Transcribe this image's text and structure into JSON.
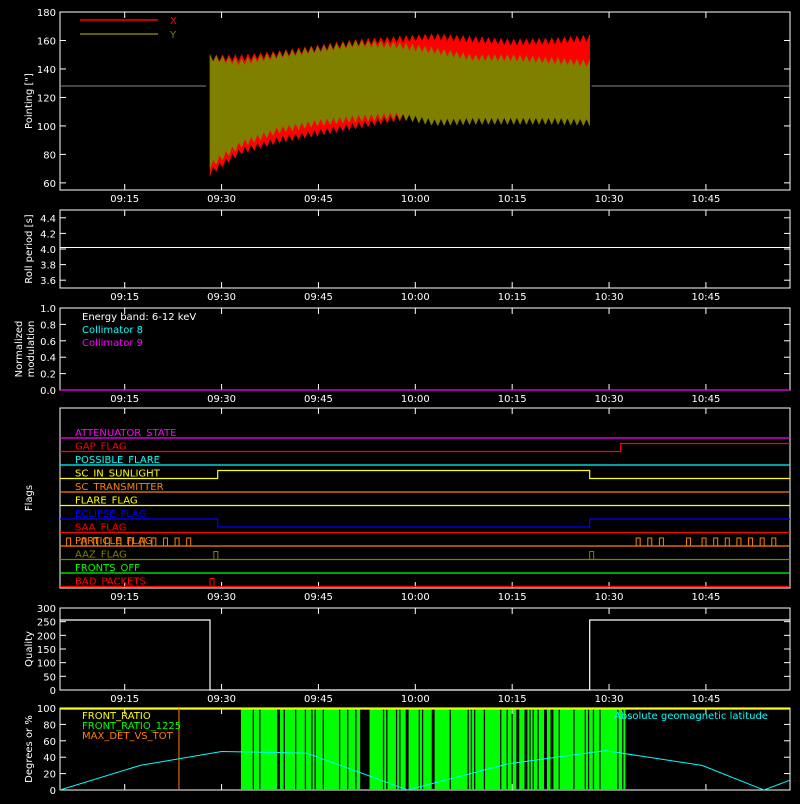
{
  "colors": {
    "background": "#000000",
    "axis": "#ffffff",
    "red": "#ff0000",
    "olive": "#7f7f00",
    "white": "#ffffff",
    "cyan": "#00ffff",
    "magenta": "#ff00ff",
    "yellow": "#ffff00",
    "orange": "#ff7f00",
    "blue": "#0000ff",
    "green": "#00ff00"
  },
  "time_ticks": [
    "09:15",
    "09:30",
    "09:45",
    "10:00",
    "10:15",
    "10:30",
    "10:45"
  ],
  "chart_data": [
    {
      "id": "pointing",
      "type": "area",
      "ylabel": "Pointing [\"]",
      "ylim": [
        55,
        180
      ],
      "yticks": [
        "60",
        "80",
        "100",
        "120",
        "140",
        "160",
        "180"
      ],
      "xlim_minutes": [
        9.083,
        10.967
      ],
      "legend": [
        "X",
        "Y"
      ],
      "reference_line": 128,
      "series": [
        {
          "name": "X",
          "color": "red",
          "x": [
            9.47,
            9.55,
            9.65,
            9.75,
            9.85,
            9.95,
            10.05,
            10.15,
            10.25,
            10.36,
            10.45
          ],
          "low": [
            65,
            80,
            88,
            93,
            98,
            103,
            106,
            108,
            110,
            110,
            112
          ],
          "high": [
            150,
            150,
            153,
            157,
            161,
            163,
            165,
            163,
            161,
            162,
            164
          ]
        },
        {
          "name": "Y",
          "color": "olive",
          "x": [
            9.47,
            9.55,
            9.65,
            9.75,
            9.85,
            9.95,
            10.05,
            10.15,
            10.25,
            10.36,
            10.45
          ],
          "low": [
            70,
            85,
            95,
            100,
            103,
            105,
            100,
            101,
            101,
            101,
            100
          ],
          "high": [
            150,
            147,
            152,
            156,
            160,
            159,
            155,
            150,
            150,
            148,
            146
          ]
        }
      ]
    },
    {
      "id": "roll",
      "type": "line",
      "ylabel": "Roll period [s]",
      "ylim": [
        3.5,
        4.5
      ],
      "yticks": [
        "3.6",
        "3.8",
        "4.0",
        "4.2",
        "4.4"
      ],
      "series": [
        {
          "color": "white",
          "x": [
            9.083,
            10.967
          ],
          "y": [
            4.02,
            4.02
          ]
        }
      ]
    },
    {
      "id": "modulation",
      "type": "line",
      "ylabel": [
        "Normalized",
        "modulation"
      ],
      "ylim": [
        0,
        1.0
      ],
      "yticks": [
        "0.0",
        "0.2",
        "0.4",
        "0.6",
        "0.8",
        "1.0"
      ],
      "annotations": [
        {
          "text": "Energy band: 6-12 keV",
          "color": "white"
        },
        {
          "text": "Collimator 8",
          "color": "cyan"
        },
        {
          "text": "Collimator 9",
          "color": "magenta"
        }
      ],
      "series": [
        {
          "name": "Collimator 9",
          "color": "magenta",
          "x": [
            9.083,
            10.967
          ],
          "y": [
            0,
            0
          ]
        }
      ]
    },
    {
      "id": "flags",
      "type": "line",
      "ylabel": "Flags",
      "rows": [
        {
          "name": "ATTENUATOR_STATE",
          "color": "magenta",
          "steps": []
        },
        {
          "name": "GAP_FLAG",
          "color": "red",
          "steps": [
            [
              10.53,
              1
            ]
          ]
        },
        {
          "name": "POSSIBLE_FLARE",
          "color": "cyan",
          "steps": []
        },
        {
          "name": "SC_IN_SUNLIGHT",
          "color": "yellow",
          "steps": [
            [
              9.49,
              1
            ],
            [
              10.45,
              0
            ]
          ]
        },
        {
          "name": "SC_TRANSMITTER",
          "color": "orange",
          "steps": []
        },
        {
          "name": "FLARE_FLAG",
          "color": "yellow",
          "steps": []
        },
        {
          "name": "ECLIPSE_FLAG",
          "color": "blue",
          "steps": [
            [
              9.49,
              -1
            ],
            [
              10.45,
              0
            ]
          ]
        },
        {
          "name": "SAA_FLAG",
          "color": "red",
          "steps": []
        },
        {
          "name": "PARTICLE_FLAG",
          "color": "orange",
          "pulses": [
            9.1,
            9.14,
            9.17,
            9.2,
            9.23,
            9.26,
            9.29,
            9.32,
            9.35,
            9.38,
            9.41,
            10.57,
            10.6,
            10.63,
            10.7,
            10.74,
            10.77,
            10.8,
            10.83,
            10.86,
            10.89,
            10.92
          ]
        },
        {
          "name": "AAZ_FLAG",
          "color": "olive",
          "pulses": [
            9.48,
            10.45
          ]
        },
        {
          "name": "FRONTS_OFF",
          "color": "green",
          "steps": []
        },
        {
          "name": "BAD_PACKETS",
          "color": "red",
          "pulses": [
            9.47
          ]
        }
      ]
    },
    {
      "id": "quality",
      "type": "line",
      "ylabel": "Quality",
      "ylim": [
        0,
        300
      ],
      "yticks": [
        "0",
        "50",
        "100",
        "150",
        "200",
        "250",
        "300"
      ],
      "series": [
        {
          "color": "white",
          "x": [
            9.083,
            9.47,
            9.47,
            10.45,
            10.45,
            10.967
          ],
          "y": [
            256,
            256,
            0,
            0,
            256,
            256
          ]
        }
      ]
    },
    {
      "id": "ratios",
      "type": "line",
      "ylabel": "Degrees or %",
      "ylim": [
        0,
        100
      ],
      "yticks": [
        "0",
        "20",
        "40",
        "60",
        "80",
        "100"
      ],
      "legend": [
        {
          "text": "FRONT_RATIO",
          "color": "yellow"
        },
        {
          "text": "FRONT_RATIO_1225",
          "color": "green"
        },
        {
          "text": "MAX_DET_VS_TOT",
          "color": "orange"
        },
        {
          "text": "Absolute geomagnetic latitude",
          "color": "cyan"
        }
      ],
      "front_ratio_1225_span": [
        9.55,
        10.54
      ],
      "max_det_step": [
        9.39,
        100
      ],
      "latitude": {
        "x": [
          9.083,
          9.29,
          9.5,
          9.72,
          9.98,
          10.24,
          10.49,
          10.74,
          10.9,
          10.967
        ],
        "y": [
          0,
          30,
          47,
          45,
          0,
          32,
          48,
          30,
          0,
          12
        ]
      }
    }
  ]
}
